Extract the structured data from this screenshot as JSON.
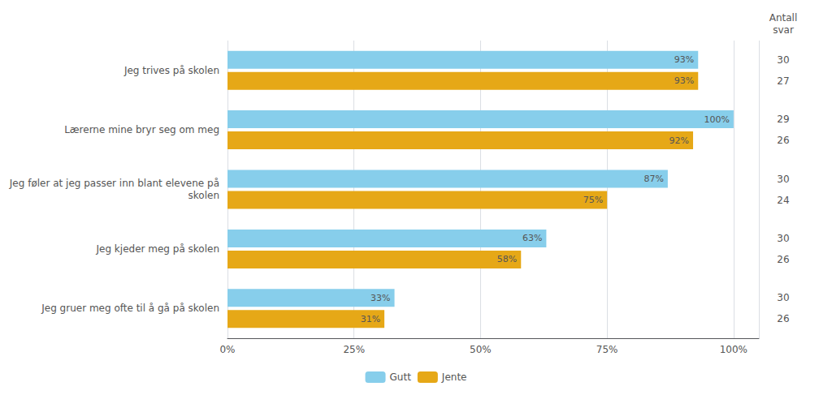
{
  "chart_data": {
    "type": "bar",
    "orientation": "horizontal",
    "categories": [
      "Jeg trives på skolen",
      "Lærerne mine bryr seg om meg",
      "Jeg føler at jeg passer inn blant elevene på\nskolen",
      "Jeg kjeder meg på skolen",
      "Jeg gruer meg ofte til å gå på skolen"
    ],
    "series": [
      {
        "name": "Gutt",
        "color": "#87CEEB",
        "values": [
          93,
          100,
          87,
          63,
          33
        ],
        "value_labels": [
          "93%",
          "100%",
          "87%",
          "63%",
          "33%"
        ],
        "counts": [
          30,
          29,
          30,
          30,
          30
        ]
      },
      {
        "name": "Jente",
        "color": "#E6A817",
        "values": [
          93,
          92,
          75,
          58,
          31
        ],
        "value_labels": [
          "93%",
          "92%",
          "75%",
          "58%",
          "31%"
        ],
        "counts": [
          27,
          26,
          24,
          26,
          26
        ]
      }
    ],
    "counts_title": "Antall\nsvar",
    "xlim": [
      0,
      105
    ],
    "xticks": [
      {
        "value": 0,
        "label": "0%"
      },
      {
        "value": 25,
        "label": "25%"
      },
      {
        "value": 50,
        "label": "50%"
      },
      {
        "value": 75,
        "label": "75%"
      },
      {
        "value": 100,
        "label": "100%"
      }
    ],
    "grid": true,
    "data_labels": true,
    "legend": "bottom"
  }
}
